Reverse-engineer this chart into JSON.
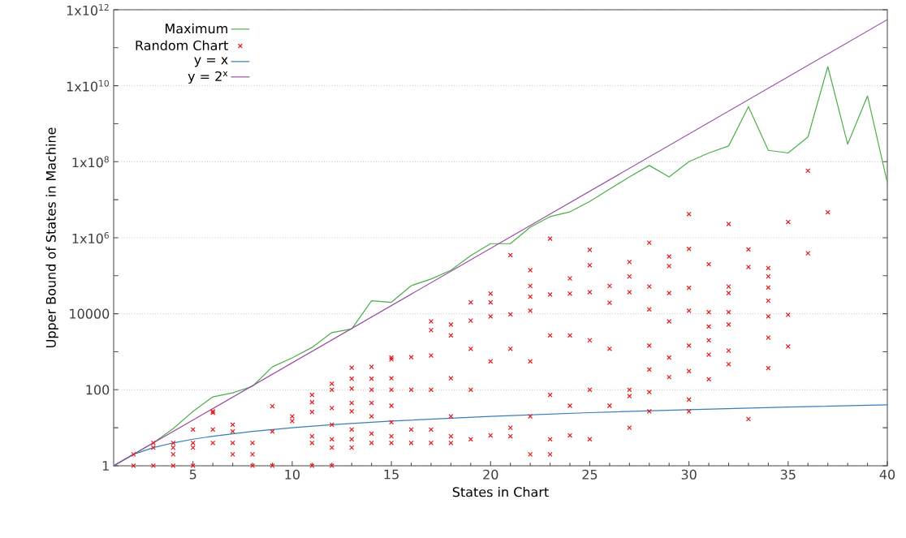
{
  "chart_data": {
    "type": "line",
    "xlabel": "States in Chart",
    "ylabel": "Upper Bound of States in Machine",
    "x": [
      1,
      2,
      3,
      4,
      5,
      6,
      7,
      8,
      9,
      10,
      11,
      12,
      13,
      14,
      15,
      16,
      17,
      18,
      19,
      20,
      21,
      22,
      23,
      24,
      25,
      26,
      27,
      28,
      29,
      30,
      31,
      32,
      33,
      34,
      35,
      36,
      37,
      38,
      39,
      40
    ],
    "xlim": [
      1,
      40
    ],
    "xticks": [
      5,
      10,
      15,
      20,
      25,
      30,
      35,
      40
    ],
    "ylim": [
      1,
      1000000000000
    ],
    "log": "y",
    "grid": "y",
    "legend": "top left",
    "yticks": [
      1,
      {
        "value": 10,
        "label": null
      },
      100,
      {
        "value": 1000,
        "label": null
      },
      10000,
      {
        "value": 100000,
        "label": null
      },
      {
        "value": 1000000,
        "label": "1x10$^{6}$"
      },
      {
        "value": 10000000,
        "label": null
      },
      {
        "value": 100000000,
        "label": "1x10$^{8}$"
      },
      {
        "value": 1000000000,
        "label": null
      },
      {
        "value": 10000000000,
        "label": "1x10$^{10}$"
      },
      {
        "value": 100000000000,
        "label": null
      },
      {
        "value": 1000000000000,
        "label": "1x10$^{12}$"
      }
    ],
    "series": [
      {
        "name": "Maximum",
        "color": "#4daf4a",
        "values": [
          1,
          2,
          4,
          9.5,
          27,
          65,
          83,
          124,
          400,
          690,
          1300,
          3200,
          4000,
          22000,
          20000,
          55000,
          82000,
          140000,
          340000,
          700000,
          700000,
          1900000,
          3600000,
          4800000,
          9000000,
          19000000,
          40000000,
          80000000,
          40000000,
          100000000,
          170000000,
          260000000,
          2800000000,
          200000000,
          170000000,
          450000000,
          32000000000,
          290000000,
          5400000000,
          28000000
        ]
      },
      {
        "name": "Random Chart",
        "type": "scatter",
        "marker": "cross",
        "color": "#e41a1c",
        "x": [
          2,
          2,
          3,
          3,
          3,
          4,
          4,
          4,
          4,
          5,
          5,
          5,
          5,
          6,
          6,
          6,
          6,
          7,
          7,
          7,
          7,
          8,
          8,
          8,
          9,
          9,
          9,
          10,
          10,
          11,
          11,
          11,
          11,
          11,
          11,
          12,
          12,
          12,
          12,
          12,
          12,
          12,
          13,
          13,
          13,
          13,
          13,
          13,
          13,
          13,
          14,
          14,
          14,
          14,
          14,
          14,
          14,
          15,
          15,
          15,
          15,
          15,
          15,
          15,
          15,
          16,
          16,
          16,
          16,
          17,
          17,
          17,
          17,
          17,
          17,
          18,
          18,
          18,
          18,
          18,
          18,
          19,
          19,
          19,
          19,
          19,
          20,
          20,
          20,
          20,
          20,
          21,
          21,
          21,
          21,
          21,
          22,
          22,
          22,
          22,
          22,
          22,
          22,
          23,
          23,
          23,
          23,
          23,
          23,
          24,
          24,
          24,
          24,
          24,
          25,
          25,
          25,
          25,
          25,
          25,
          26,
          26,
          26,
          26,
          27,
          27,
          27,
          27,
          27,
          27,
          28,
          28,
          28,
          28,
          28,
          28,
          28,
          29,
          29,
          29,
          29,
          29,
          29,
          30,
          30,
          30,
          30,
          30,
          30,
          30,
          30,
          31,
          31,
          31,
          31,
          31,
          31,
          32,
          32,
          32,
          32,
          32,
          32,
          32,
          33,
          33,
          33,
          34,
          34,
          34,
          34,
          34,
          34,
          34,
          35,
          35,
          35,
          36,
          36,
          37
        ],
        "values": [
          2,
          1,
          1,
          3,
          4,
          1,
          2,
          3,
          4,
          1,
          3,
          4,
          9,
          4,
          9,
          25,
          27,
          2,
          4,
          8,
          12,
          1,
          2,
          4,
          1,
          8,
          37,
          15,
          20,
          1,
          4,
          6,
          26,
          47,
          73,
          1,
          3,
          5,
          12,
          33,
          100,
          145,
          3,
          5,
          9,
          27,
          45,
          107,
          195,
          380,
          4,
          7,
          20,
          45,
          100,
          195,
          400,
          4,
          6,
          14,
          38,
          100,
          200,
          630,
          700,
          4,
          9,
          100,
          720,
          4,
          9,
          100,
          800,
          3700,
          6300,
          4,
          6,
          20,
          200,
          2700,
          5200,
          5,
          100,
          1200,
          6600,
          20000,
          6.3,
          560,
          8500,
          20000,
          34000,
          6,
          10,
          1200,
          9600,
          350000,
          2,
          20,
          560,
          12000,
          28000,
          54000,
          140000,
          2,
          5,
          73,
          2700,
          32000,
          950000,
          6.3,
          38,
          2700,
          34000,
          85000,
          5,
          100,
          2000,
          37000,
          190000,
          480000,
          38,
          1200,
          19500,
          54000,
          10,
          68,
          100,
          37000,
          96000,
          230000,
          27,
          87,
          340,
          1450,
          13000,
          52000,
          740000,
          215,
          700,
          6300,
          35000,
          180000,
          320000,
          27,
          55,
          310,
          1450,
          12000,
          48000,
          510000,
          4200000,
          190,
          840,
          2000,
          4600,
          11000,
          200000,
          470,
          1070,
          5200,
          11000,
          35000,
          52000,
          2300000,
          17,
          170000,
          490000,
          370,
          2350,
          8500,
          22000,
          49000,
          96000,
          160000,
          1380,
          9400,
          2600000,
          390000,
          58000000,
          4700000
        ]
      },
      {
        "name": "y = x",
        "color": "#377eb8",
        "x": [
          1,
          2,
          3,
          4,
          5,
          6,
          8,
          10,
          12,
          15,
          20,
          25,
          30,
          35,
          40
        ],
        "values": [
          1,
          2,
          3,
          4,
          5,
          6,
          8,
          10,
          12,
          15,
          20,
          25,
          30,
          35,
          40
        ]
      },
      {
        "name": "y = 2$^{x}$",
        "color": "#984ea3",
        "x": [
          1,
          40
        ],
        "values": [
          1,
          550000000000
        ]
      }
    ]
  }
}
